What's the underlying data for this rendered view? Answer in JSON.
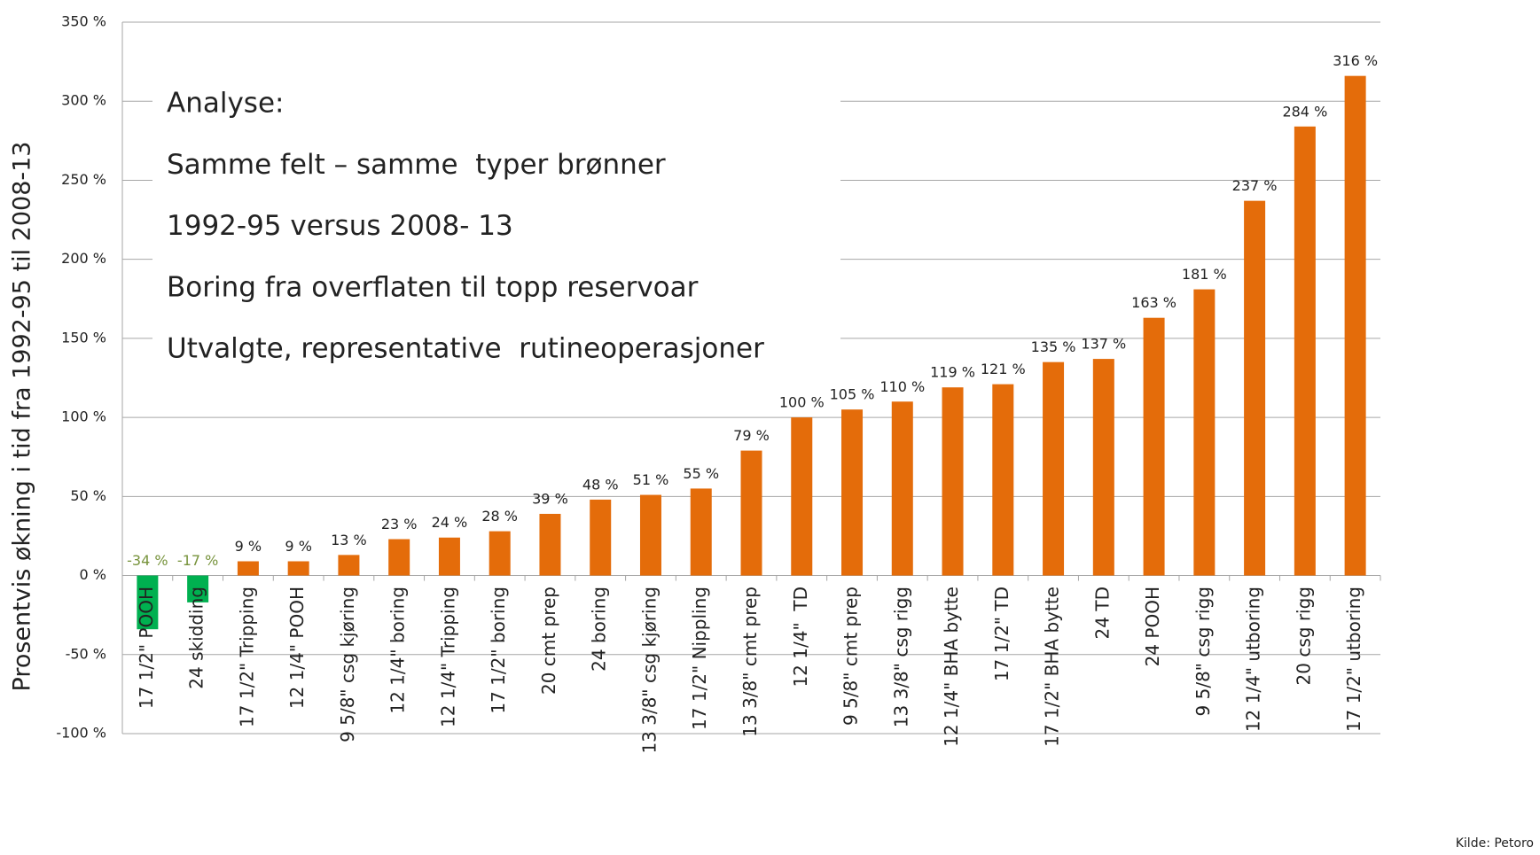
{
  "chart_data": {
    "type": "bar",
    "y_label": "Prosentvis økning i tid fra 1992-95 til 2008-13",
    "annotation": [
      "Analyse:",
      "Samme felt – samme  typer brønner",
      "1992-95 versus 2008- 13",
      "Boring fra overflaten til topp reservoar",
      "Utvalgte, representative  rutineoperasjoner"
    ],
    "source": "Kilde: Petoro",
    "categories": [
      "17 1/2\" POOH",
      "24 skidding",
      "17 1/2\" Tripping",
      "12 1/4\" POOH",
      "9 5/8\" csg kjøring",
      "12 1/4\" boring",
      "12 1/4\" Tripping",
      "17 1/2\" boring",
      "20 cmt prep",
      "24 boring",
      "13 3/8\" csg kjøring",
      "17 1/2\" Nippling",
      "13 3/8\" cmt prep",
      "12 1/4\"  TD",
      "9 5/8\" cmt prep",
      "13 3/8\" csg rigg",
      "12 1/4\" BHA bytte",
      "17 1/2\" TD",
      "17 1/2\" BHA bytte",
      "24 TD",
      "24 POOH",
      "9 5/8\" csg rigg",
      "12 1/4\" utboring",
      "20 csg rigg",
      "17 1/2\" utboring"
    ],
    "values": [
      -34,
      -17,
      9,
      9,
      13,
      23,
      24,
      28,
      39,
      48,
      51,
      55,
      79,
      100,
      105,
      110,
      119,
      121,
      135,
      137,
      163,
      181,
      237,
      284,
      316
    ],
    "value_labels": [
      "-34 %",
      "-17 %",
      "9 %",
      "9 %",
      "13 %",
      "23 %",
      "24 %",
      "28 %",
      "39 %",
      "48 %",
      "51 %",
      "55 %",
      "79 %",
      "100 %",
      "105 %",
      "110 %",
      "119 %",
      "121 %",
      "135 %",
      "137 %",
      "163 %",
      "181 %",
      "237 %",
      "284 %",
      "316 %"
    ],
    "colors": [
      "#00b050",
      "#00b050",
      "#e46c0a",
      "#e46c0a",
      "#e46c0a",
      "#e46c0a",
      "#e46c0a",
      "#e46c0a",
      "#e46c0a",
      "#e46c0a",
      "#e46c0a",
      "#e46c0a",
      "#e46c0a",
      "#e46c0a",
      "#e46c0a",
      "#e46c0a",
      "#e46c0a",
      "#e46c0a",
      "#e46c0a",
      "#e46c0a",
      "#e46c0a",
      "#e46c0a",
      "#e46c0a",
      "#e46c0a",
      "#e46c0a"
    ],
    "value_label_colors": [
      "#77933c",
      "#77933c",
      "#222222",
      "#222222",
      "#222222",
      "#222222",
      "#222222",
      "#222222",
      "#222222",
      "#222222",
      "#222222",
      "#222222",
      "#222222",
      "#222222",
      "#222222",
      "#222222",
      "#222222",
      "#222222",
      "#222222",
      "#222222",
      "#222222",
      "#222222",
      "#222222",
      "#222222",
      "#222222"
    ],
    "ylim": [
      -100,
      350
    ],
    "yticks": [
      {
        "value": -100,
        "label": "-100 %"
      },
      {
        "value": -50,
        "label": "-50 %"
      },
      {
        "value": 0,
        "label": "0 %"
      },
      {
        "value": 50,
        "label": "50 %"
      },
      {
        "value": 100,
        "label": "100 %"
      },
      {
        "value": 150,
        "label": "150 %"
      },
      {
        "value": 200,
        "label": "200 %"
      },
      {
        "value": 250,
        "label": "250 %"
      },
      {
        "value": 300,
        "label": "300 %"
      },
      {
        "value": 350,
        "label": "350 %"
      }
    ],
    "grid": true
  }
}
